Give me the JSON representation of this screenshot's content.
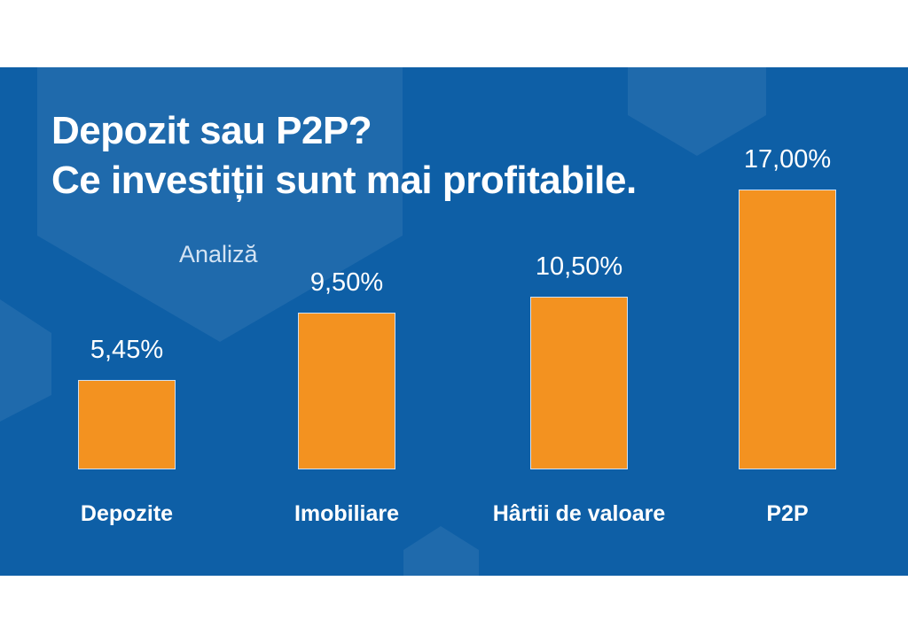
{
  "slide": {
    "title_line1": "Depozit sau P2P?",
    "title_line2": "Ce investiții sunt mai profitabile.",
    "subtitle": "Analiză"
  },
  "colors": {
    "background": "#0e5fa6",
    "bar": "#f39220",
    "text": "#ffffff"
  },
  "chart_data": {
    "type": "bar",
    "title": "Depozit sau P2P? Ce investiții sunt mai profitabile.",
    "subtitle": "Analiză",
    "categories": [
      "Depozite",
      "Imobiliare",
      "Hârtii de valoare",
      "P2P"
    ],
    "values": [
      5.45,
      9.5,
      10.5,
      17.0
    ],
    "value_labels": [
      "5,45%",
      "9,50%",
      "10,50%",
      "17,00%"
    ],
    "xlabel": "",
    "ylabel": "",
    "ylim": [
      0,
      17
    ],
    "grid": false,
    "legend": "none"
  }
}
